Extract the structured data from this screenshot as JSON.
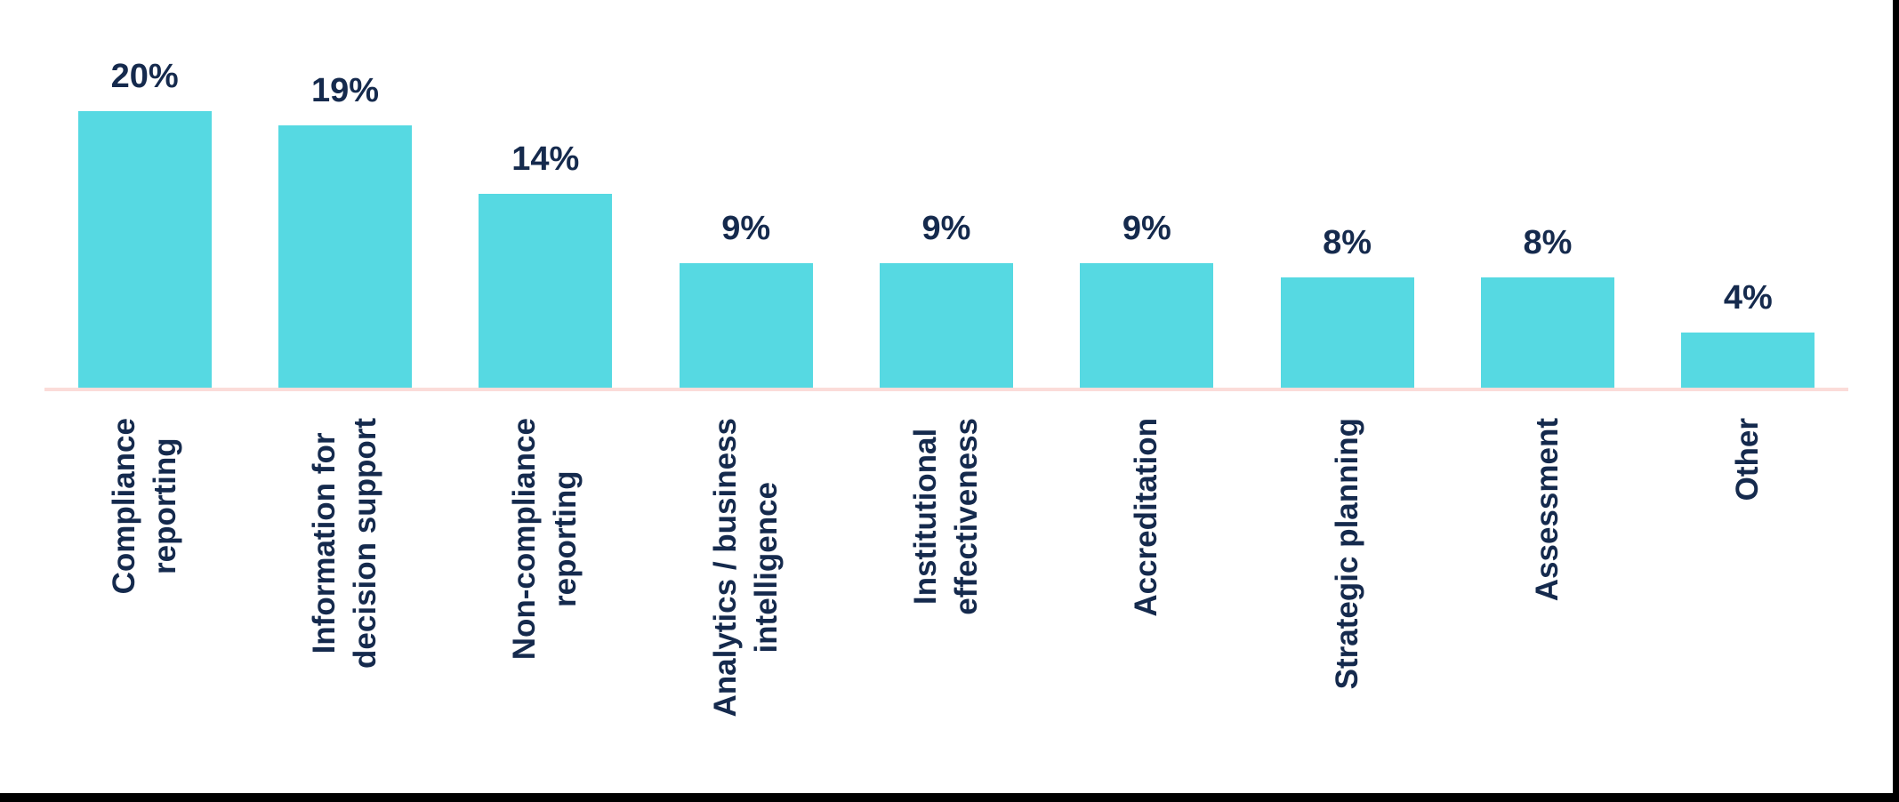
{
  "chart_data": {
    "type": "bar",
    "title": "",
    "xlabel": "",
    "ylabel": "",
    "categories": [
      "Compliance reporting",
      "Information for decision support",
      "Non-compliance reporting",
      "Analytics / business intelligence",
      "Institutional effectiveness",
      "Accreditation",
      "Strategic planning",
      "Assessment",
      "Other"
    ],
    "category_lines": [
      [
        "Compliance",
        "reporting"
      ],
      [
        "Information for",
        "decision support"
      ],
      [
        "Non-compliance",
        "reporting"
      ],
      [
        "Analytics / business",
        "intelligence"
      ],
      [
        "Institutional",
        "effectiveness"
      ],
      [
        "Accreditation"
      ],
      [
        "Strategic planning"
      ],
      [
        "Assessment"
      ],
      [
        "Other"
      ]
    ],
    "values": [
      20,
      19,
      14,
      9,
      9,
      9,
      8,
      8,
      4
    ],
    "value_labels": [
      "20%",
      "19%",
      "14%",
      "9%",
      "9%",
      "9%",
      "8%",
      "8%",
      "4%"
    ],
    "ylim": [
      0,
      20
    ],
    "grid": false,
    "legend": null,
    "category_label_rotation_deg": -90,
    "bar_color": "#56D9E2",
    "label_color": "#152A4D",
    "axis_line_color": "#FBDCD9",
    "edge_border_color": "#000000"
  }
}
